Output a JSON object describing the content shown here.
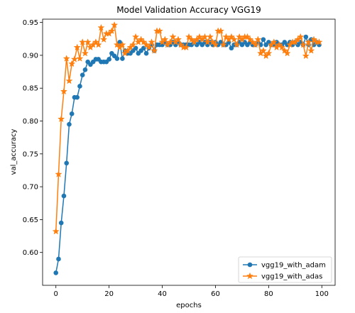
{
  "chart_data": {
    "type": "line",
    "title": "Model Validation Accuracy VGG19",
    "xlabel": "epochs",
    "ylabel": "val_accuracy",
    "xlim": [
      -5,
      105
    ],
    "ylim": [
      0.55,
      0.955
    ],
    "xticks": [
      0,
      20,
      40,
      60,
      80,
      100
    ],
    "yticks": [
      0.6,
      0.65,
      0.7,
      0.75,
      0.8,
      0.85,
      0.9,
      0.95
    ],
    "grid": false,
    "legend_position": "lower-right",
    "series": [
      {
        "name": "vgg19_with_adam",
        "color": "#1f77b4",
        "marker": "circle",
        "x": [
          0,
          1,
          2,
          3,
          4,
          5,
          6,
          7,
          8,
          9,
          10,
          11,
          12,
          13,
          14,
          15,
          16,
          17,
          18,
          19,
          20,
          21,
          22,
          23,
          24,
          25,
          26,
          27,
          28,
          29,
          30,
          31,
          32,
          33,
          34,
          35,
          36,
          37,
          38,
          39,
          40,
          41,
          42,
          43,
          44,
          45,
          46,
          47,
          48,
          49,
          50,
          51,
          52,
          53,
          54,
          55,
          56,
          57,
          58,
          59,
          60,
          61,
          62,
          63,
          64,
          65,
          66,
          67,
          68,
          69,
          70,
          71,
          72,
          73,
          74,
          75,
          76,
          77,
          78,
          79,
          80,
          81,
          82,
          83,
          84,
          85,
          86,
          87,
          88,
          89,
          90,
          91,
          92,
          93,
          94,
          95,
          96,
          97,
          98,
          99
        ],
        "values": [
          0.569,
          0.59,
          0.645,
          0.686,
          0.736,
          0.795,
          0.811,
          0.836,
          0.836,
          0.853,
          0.87,
          0.878,
          0.89,
          0.886,
          0.89,
          0.894,
          0.894,
          0.89,
          0.89,
          0.89,
          0.894,
          0.903,
          0.899,
          0.895,
          0.92,
          0.895,
          0.907,
          0.903,
          0.903,
          0.907,
          0.911,
          0.903,
          0.907,
          0.911,
          0.903,
          0.911,
          0.916,
          0.907,
          0.916,
          0.916,
          0.916,
          0.92,
          0.916,
          0.916,
          0.92,
          0.916,
          0.92,
          0.916,
          0.916,
          0.916,
          0.916,
          0.916,
          0.92,
          0.916,
          0.92,
          0.916,
          0.92,
          0.916,
          0.92,
          0.916,
          0.92,
          0.916,
          0.92,
          0.916,
          0.916,
          0.92,
          0.911,
          0.916,
          0.916,
          0.92,
          0.916,
          0.92,
          0.916,
          0.92,
          0.916,
          0.916,
          0.92,
          0.916,
          0.924,
          0.916,
          0.92,
          0.916,
          0.916,
          0.92,
          0.916,
          0.916,
          0.92,
          0.916,
          0.92,
          0.916,
          0.92,
          0.916,
          0.92,
          0.916,
          0.928,
          0.916,
          0.924,
          0.916,
          0.92,
          0.916
        ]
      },
      {
        "name": "vgg19_with_adas",
        "color": "#ff7f0e",
        "marker": "star",
        "x": [
          0,
          1,
          2,
          3,
          4,
          5,
          6,
          7,
          8,
          9,
          10,
          11,
          12,
          13,
          14,
          15,
          16,
          17,
          18,
          19,
          20,
          21,
          22,
          23,
          24,
          25,
          26,
          27,
          28,
          29,
          30,
          31,
          32,
          33,
          34,
          35,
          36,
          37,
          38,
          39,
          40,
          41,
          42,
          43,
          44,
          45,
          46,
          47,
          48,
          49,
          50,
          51,
          52,
          53,
          54,
          55,
          56,
          57,
          58,
          59,
          60,
          61,
          62,
          63,
          64,
          65,
          66,
          67,
          68,
          69,
          70,
          71,
          72,
          73,
          74,
          75,
          76,
          77,
          78,
          79,
          80,
          81,
          82,
          83,
          84,
          85,
          86,
          87,
          88,
          89,
          90,
          91,
          92,
          93,
          94,
          95,
          96,
          97,
          98,
          99
        ],
        "values": [
          0.632,
          0.719,
          0.803,
          0.845,
          0.895,
          0.861,
          0.887,
          0.894,
          0.912,
          0.895,
          0.92,
          0.903,
          0.92,
          0.912,
          0.916,
          0.92,
          0.916,
          0.942,
          0.924,
          0.933,
          0.933,
          0.937,
          0.946,
          0.916,
          0.912,
          0.916,
          0.903,
          0.907,
          0.912,
          0.916,
          0.928,
          0.92,
          0.924,
          0.92,
          0.916,
          0.912,
          0.92,
          0.907,
          0.937,
          0.937,
          0.92,
          0.924,
          0.916,
          0.92,
          0.928,
          0.92,
          0.924,
          0.916,
          0.912,
          0.912,
          0.928,
          0.924,
          0.92,
          0.924,
          0.928,
          0.924,
          0.928,
          0.92,
          0.928,
          0.92,
          0.916,
          0.937,
          0.937,
          0.916,
          0.928,
          0.924,
          0.928,
          0.924,
          0.916,
          0.928,
          0.924,
          0.928,
          0.928,
          0.924,
          0.92,
          0.916,
          0.924,
          0.903,
          0.907,
          0.899,
          0.903,
          0.916,
          0.92,
          0.912,
          0.916,
          0.912,
          0.907,
          0.903,
          0.916,
          0.92,
          0.92,
          0.924,
          0.928,
          0.916,
          0.899,
          0.92,
          0.907,
          0.924,
          0.92,
          0.92
        ]
      }
    ]
  }
}
